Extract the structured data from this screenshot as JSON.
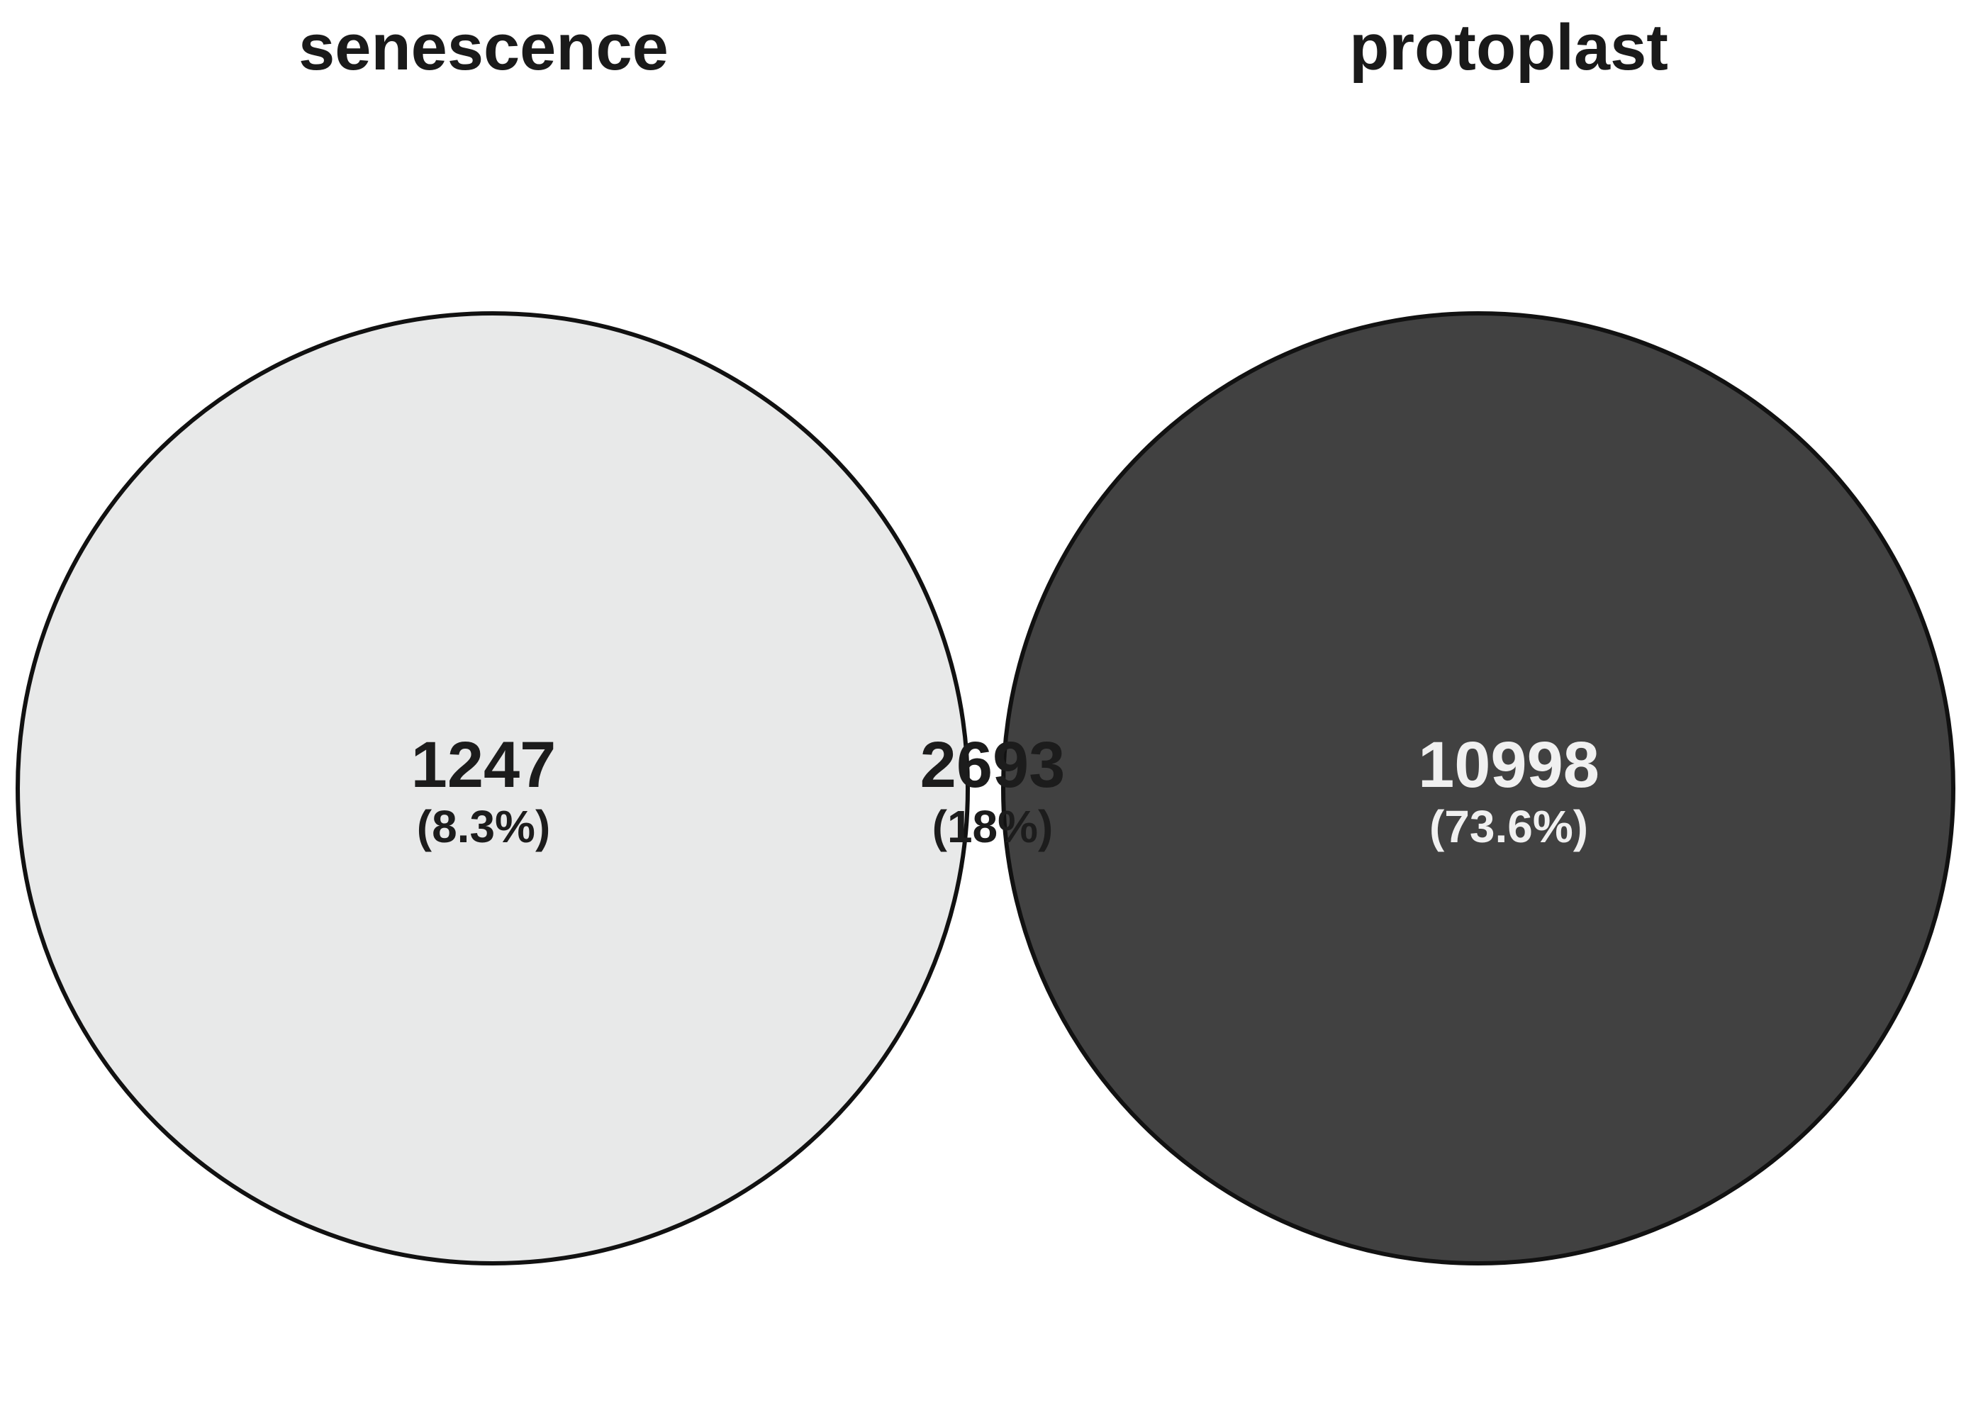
{
  "sets": [
    {
      "name": "senescence",
      "fill": "#e8e9e9"
    },
    {
      "name": "protoplast",
      "fill": "#414141"
    }
  ],
  "regions": {
    "senescence_only": {
      "count": "1247",
      "percent": "(8.3%)",
      "text_color": "#1c1c1c"
    },
    "overlap": {
      "count": "2693",
      "percent": "(18%)",
      "fill": "#d0d0d0",
      "text_color": "#1c1c1c"
    },
    "protoplast_only": {
      "count": "10998",
      "percent": "(73.6%)",
      "text_color": "#f0f0f0"
    }
  }
}
